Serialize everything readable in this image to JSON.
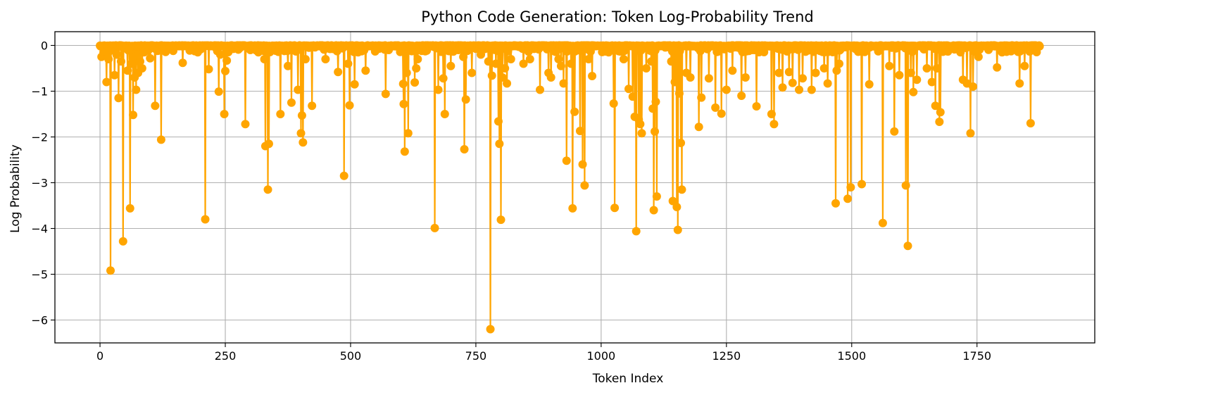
{
  "chart_data": {
    "type": "line",
    "title": "Python Code Generation: Token Log-Probability Trend",
    "xlabel": "Token Index",
    "ylabel": "Log Probability",
    "xlim": [
      -90,
      1985
    ],
    "ylim": [
      -6.5,
      0.3
    ],
    "xticks": [
      0,
      250,
      500,
      750,
      1000,
      1250,
      1500,
      1750
    ],
    "yticks": [
      0,
      -1,
      -2,
      -3,
      -4,
      -5,
      -6
    ],
    "xtick_labels": [
      "0",
      "250",
      "500",
      "750",
      "1000",
      "1250",
      "1500",
      "1750"
    ],
    "ytick_labels": [
      "0",
      "−1",
      "−2",
      "−3",
      "−4",
      "−5",
      "−6"
    ],
    "grid": true,
    "color": "#ffa500",
    "marker": "circle",
    "n_points": 1876,
    "baseline": -0.02,
    "points": [
      [
        3,
        -0.25
      ],
      [
        7,
        -0.15
      ],
      [
        10,
        -0.05
      ],
      [
        13,
        -0.8
      ],
      [
        17,
        -0.3
      ],
      [
        21,
        -4.92
      ],
      [
        25,
        -0.1
      ],
      [
        29,
        -0.65
      ],
      [
        33,
        -0.2
      ],
      [
        37,
        -1.15
      ],
      [
        42,
        -0.35
      ],
      [
        46,
        -4.28
      ],
      [
        50,
        -0.05
      ],
      [
        55,
        -0.55
      ],
      [
        60,
        -3.56
      ],
      [
        63,
        -0.4
      ],
      [
        66,
        -1.52
      ],
      [
        69,
        -0.7
      ],
      [
        72,
        -0.97
      ],
      [
        76,
        -0.6
      ],
      [
        80,
        -0.35
      ],
      [
        84,
        -0.5
      ],
      [
        88,
        -0.15
      ],
      [
        100,
        -0.28
      ],
      [
        110,
        -1.32
      ],
      [
        115,
        -0.12
      ],
      [
        122,
        -2.06
      ],
      [
        130,
        -0.08
      ],
      [
        165,
        -0.38
      ],
      [
        195,
        -0.15
      ],
      [
        210,
        -3.8
      ],
      [
        217,
        -0.52
      ],
      [
        237,
        -1.01
      ],
      [
        240,
        -0.2
      ],
      [
        248,
        -1.5
      ],
      [
        250,
        -0.56
      ],
      [
        253,
        -0.33
      ],
      [
        290,
        -1.72
      ],
      [
        300,
        -0.1
      ],
      [
        328,
        -0.3
      ],
      [
        330,
        -2.2
      ],
      [
        335,
        -3.15
      ],
      [
        337,
        -2.15
      ],
      [
        360,
        -1.5
      ],
      [
        375,
        -0.45
      ],
      [
        382,
        -1.25
      ],
      [
        395,
        -0.97
      ],
      [
        401,
        -1.92
      ],
      [
        403,
        -1.53
      ],
      [
        405,
        -2.12
      ],
      [
        410,
        -0.3
      ],
      [
        423,
        -1.32
      ],
      [
        450,
        -0.3
      ],
      [
        475,
        -0.58
      ],
      [
        487,
        -2.85
      ],
      [
        495,
        -0.4
      ],
      [
        498,
        -1.31
      ],
      [
        508,
        -0.85
      ],
      [
        515,
        -0.15
      ],
      [
        530,
        -0.55
      ],
      [
        570,
        -1.06
      ],
      [
        605,
        -0.84
      ],
      [
        606,
        -1.28
      ],
      [
        608,
        -2.32
      ],
      [
        612,
        -0.6
      ],
      [
        615,
        -1.92
      ],
      [
        628,
        -0.81
      ],
      [
        631,
        -0.5
      ],
      [
        634,
        -0.3
      ],
      [
        668,
        -3.99
      ],
      [
        675,
        -0.97
      ],
      [
        685,
        -0.72
      ],
      [
        688,
        -1.5
      ],
      [
        700,
        -0.45
      ],
      [
        715,
        -0.1
      ],
      [
        725,
        -0.25
      ],
      [
        727,
        -2.27
      ],
      [
        730,
        -1.18
      ],
      [
        742,
        -0.6
      ],
      [
        760,
        -0.2
      ],
      [
        775,
        -0.35
      ],
      [
        779,
        -6.2
      ],
      [
        782,
        -0.66
      ],
      [
        790,
        -0.4
      ],
      [
        795,
        -1.66
      ],
      [
        797,
        -2.15
      ],
      [
        800,
        -3.81
      ],
      [
        803,
        -0.7
      ],
      [
        808,
        -0.5
      ],
      [
        812,
        -0.83
      ],
      [
        820,
        -0.3
      ],
      [
        845,
        -0.4
      ],
      [
        858,
        -0.3
      ],
      [
        878,
        -0.97
      ],
      [
        895,
        -0.6
      ],
      [
        900,
        -0.7
      ],
      [
        915,
        -0.3
      ],
      [
        920,
        -0.45
      ],
      [
        925,
        -0.83
      ],
      [
        931,
        -2.52
      ],
      [
        940,
        -0.4
      ],
      [
        943,
        -3.56
      ],
      [
        947,
        -1.45
      ],
      [
        958,
        -1.87
      ],
      [
        963,
        -2.6
      ],
      [
        967,
        -3.06
      ],
      [
        975,
        -0.3
      ],
      [
        982,
        -0.67
      ],
      [
        1015,
        -0.15
      ],
      [
        1025,
        -1.27
      ],
      [
        1027,
        -3.55
      ],
      [
        1045,
        -0.3
      ],
      [
        1055,
        -0.95
      ],
      [
        1063,
        -1.12
      ],
      [
        1067,
        -1.56
      ],
      [
        1070,
        -4.06
      ],
      [
        1075,
        -1.62
      ],
      [
        1078,
        -1.72
      ],
      [
        1081,
        -1.92
      ],
      [
        1090,
        -0.5
      ],
      [
        1100,
        -0.35
      ],
      [
        1103,
        -1.38
      ],
      [
        1105,
        -3.6
      ],
      [
        1107,
        -1.88
      ],
      [
        1109,
        -1.23
      ],
      [
        1111,
        -3.3
      ],
      [
        1140,
        -0.35
      ],
      [
        1143,
        -3.4
      ],
      [
        1147,
        -0.8
      ],
      [
        1151,
        -3.53
      ],
      [
        1153,
        -4.03
      ],
      [
        1156,
        -1.05
      ],
      [
        1159,
        -2.13
      ],
      [
        1161,
        -3.15
      ],
      [
        1170,
        -0.6
      ],
      [
        1178,
        -0.7
      ],
      [
        1195,
        -1.78
      ],
      [
        1200,
        -1.14
      ],
      [
        1215,
        -0.72
      ],
      [
        1228,
        -1.36
      ],
      [
        1240,
        -1.49
      ],
      [
        1250,
        -0.97
      ],
      [
        1262,
        -0.55
      ],
      [
        1280,
        -1.1
      ],
      [
        1288,
        -0.7
      ],
      [
        1310,
        -1.33
      ],
      [
        1340,
        -1.5
      ],
      [
        1345,
        -1.72
      ],
      [
        1355,
        -0.6
      ],
      [
        1362,
        -0.92
      ],
      [
        1375,
        -0.58
      ],
      [
        1382,
        -0.82
      ],
      [
        1395,
        -0.97
      ],
      [
        1402,
        -0.72
      ],
      [
        1420,
        -0.97
      ],
      [
        1428,
        -0.6
      ],
      [
        1445,
        -0.5
      ],
      [
        1452,
        -0.83
      ],
      [
        1468,
        -3.45
      ],
      [
        1470,
        -0.55
      ],
      [
        1475,
        -0.4
      ],
      [
        1492,
        -3.35
      ],
      [
        1498,
        -3.1
      ],
      [
        1520,
        -3.03
      ],
      [
        1535,
        -0.85
      ],
      [
        1562,
        -3.88
      ],
      [
        1575,
        -0.45
      ],
      [
        1585,
        -1.88
      ],
      [
        1595,
        -0.65
      ],
      [
        1608,
        -3.06
      ],
      [
        1612,
        -4.38
      ],
      [
        1618,
        -0.6
      ],
      [
        1623,
        -1.02
      ],
      [
        1630,
        -0.75
      ],
      [
        1650,
        -0.5
      ],
      [
        1660,
        -0.8
      ],
      [
        1667,
        -1.32
      ],
      [
        1670,
        -0.5
      ],
      [
        1675,
        -1.67
      ],
      [
        1677,
        -1.46
      ],
      [
        1722,
        -0.75
      ],
      [
        1730,
        -0.83
      ],
      [
        1737,
        -1.92
      ],
      [
        1742,
        -0.9
      ],
      [
        1753,
        -0.25
      ],
      [
        1790,
        -0.48
      ],
      [
        1800,
        -0.15
      ],
      [
        1835,
        -0.83
      ],
      [
        1845,
        -0.45
      ],
      [
        1857,
        -1.7
      ],
      [
        1870,
        -0.05
      ]
    ]
  }
}
